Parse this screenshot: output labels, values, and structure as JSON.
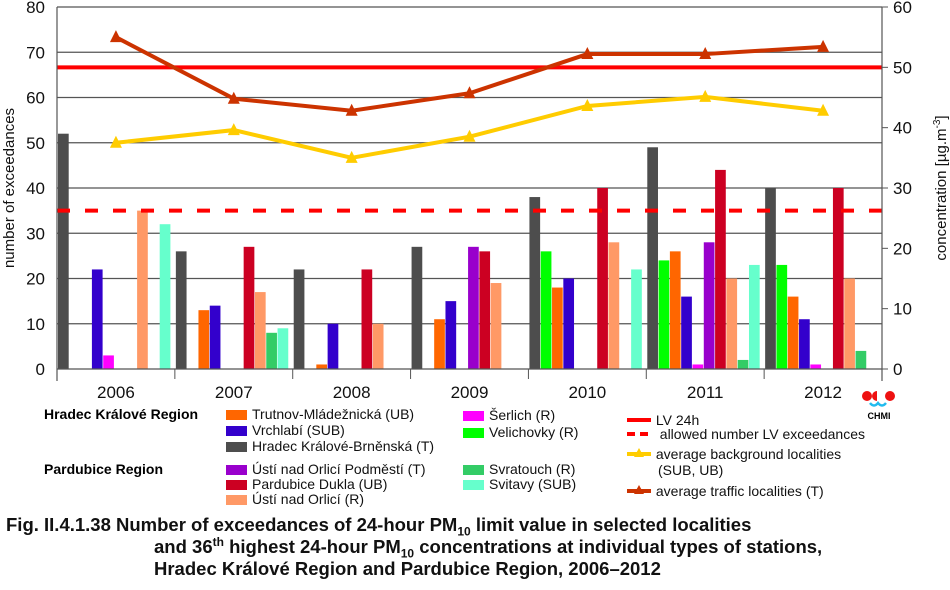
{
  "chart_data": {
    "type": "bar",
    "categories": [
      "2006",
      "2007",
      "2008",
      "2009",
      "2010",
      "2011",
      "2012"
    ],
    "ylabel": "number of exceedances",
    "ylabel_right": "concentration [µg.m",
    "ylabel_right_sup": "-3",
    "ylabel_right_end": "]",
    "ylim": [
      0,
      80
    ],
    "ylim_right": [
      0,
      60
    ],
    "yticks": [
      "0",
      "10",
      "20",
      "30",
      "40",
      "50",
      "60",
      "70",
      "80"
    ],
    "yticks_right": [
      "0",
      "10",
      "20",
      "30",
      "40",
      "50",
      "60"
    ],
    "grid": true,
    "series": [
      {
        "name": "Hradec Králové-Brněnská (T)",
        "color": "#4d4d4d",
        "values": [
          52,
          26,
          22,
          27,
          38,
          49,
          40
        ]
      },
      {
        "name": "Velichovky (R)",
        "color": "#00ff00",
        "values": [
          null,
          null,
          null,
          null,
          26,
          24,
          23
        ]
      },
      {
        "name": "Trutnov-Mládežnická (UB)",
        "color": "#ff6600",
        "values": [
          null,
          13,
          1,
          11,
          18,
          26,
          16
        ]
      },
      {
        "name": "Vrchlabí (SUB)",
        "color": "#3300cc",
        "values": [
          22,
          14,
          10,
          15,
          20,
          16,
          11
        ]
      },
      {
        "name": "Šerlich (R)",
        "color": "#ff00ff",
        "values": [
          3,
          null,
          null,
          null,
          null,
          1,
          1
        ]
      },
      {
        "name": "Ústí nad Orlicí Podměstí (T)",
        "color": "#9900cc",
        "values": [
          null,
          null,
          null,
          27,
          null,
          28,
          null
        ]
      },
      {
        "name": "Pardubice Dukla (UB)",
        "color": "#cc0022",
        "values": [
          null,
          27,
          22,
          26,
          40,
          44,
          40
        ]
      },
      {
        "name": "Ústí nad Orlicí (R)",
        "color": "#ff9966",
        "values": [
          35,
          17,
          10,
          19,
          28,
          20,
          20
        ]
      },
      {
        "name": "Svratouch (R)",
        "color": "#33cc66",
        "values": [
          null,
          8,
          null,
          null,
          null,
          2,
          4
        ]
      },
      {
        "name": "Svitavy (SUB)",
        "color": "#66ffcc",
        "values": [
          32,
          9,
          null,
          null,
          22,
          23,
          null
        ]
      }
    ],
    "lines": [
      {
        "name": "LV 24h",
        "color": "#ff0000",
        "axis": "right",
        "constant": 50,
        "style": "solid"
      },
      {
        "name": "allowed number LV exceedances",
        "color": "#ff0000",
        "axis": "left",
        "constant": 35,
        "style": "dashed"
      },
      {
        "name": "average background localities (SUB, UB)",
        "name_line1": "average background localities",
        "name_line2": "(SUB, UB)",
        "color": "#ffcc00",
        "axis": "right",
        "values": [
          37.5,
          39.6,
          35.0,
          38.5,
          43.6,
          45.1,
          42.8
        ]
      },
      {
        "name": "average traffic localities  (T)",
        "color": "#cc3300",
        "axis": "right",
        "values": [
          55.0,
          44.8,
          42.8,
          45.7,
          52.2,
          52.2,
          53.4
        ]
      }
    ]
  },
  "legend": {
    "region_hk": "Hradec Králové Region",
    "region_pa": "Pardubice Region"
  },
  "logo": {
    "text": "CHMI"
  },
  "caption": {
    "l1a": "Fig. II.4.1.38  Number of exceedances of 24-hour PM",
    "l1sub": "10",
    "l1b": " limit value in selected localities",
    "l2a": "and 36",
    "l2sup": "th",
    "l2b": " highest 24-hour PM",
    "l2sub": "10",
    "l2c": " concentrations at individual types of stations,",
    "l3": "Hradec Králové Region and Pardubice Region, 2006–2012"
  }
}
